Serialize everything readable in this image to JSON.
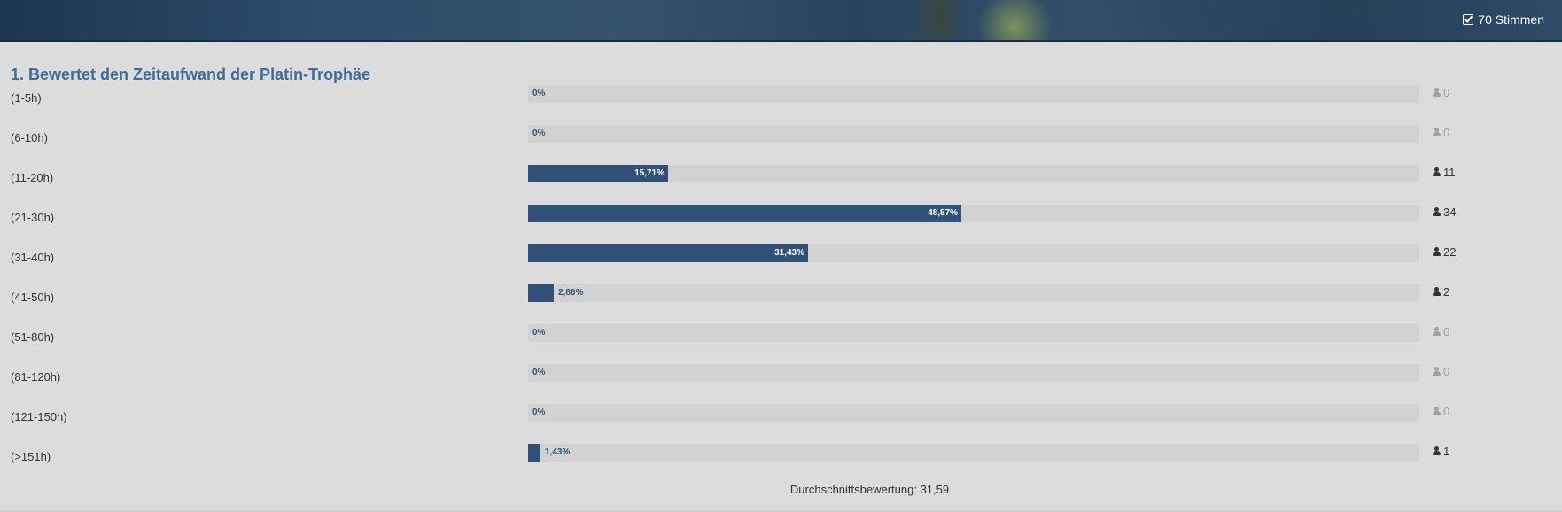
{
  "header": {
    "votes_label": "70 Stimmen"
  },
  "poll": {
    "question": "1. Bewertet den Zeitaufwand der Platin-Trophäe",
    "accent_color": "#31517a",
    "options": [
      {
        "label": "(1-5h)",
        "percent": 0,
        "percent_label": "0%",
        "votes": 0
      },
      {
        "label": "(6-10h)",
        "percent": 0,
        "percent_label": "0%",
        "votes": 0
      },
      {
        "label": "(11-20h)",
        "percent": 15.71,
        "percent_label": "15,71%",
        "votes": 11
      },
      {
        "label": "(21-30h)",
        "percent": 48.57,
        "percent_label": "48,57%",
        "votes": 34
      },
      {
        "label": "(31-40h)",
        "percent": 31.43,
        "percent_label": "31,43%",
        "votes": 22
      },
      {
        "label": "(41-50h)",
        "percent": 2.86,
        "percent_label": "2,86%",
        "votes": 2
      },
      {
        "label": "(51-80h)",
        "percent": 0,
        "percent_label": "0%",
        "votes": 0
      },
      {
        "label": "(81-120h)",
        "percent": 0,
        "percent_label": "0%",
        "votes": 0
      },
      {
        "label": "(121-150h)",
        "percent": 0,
        "percent_label": "0%",
        "votes": 0
      },
      {
        "label": "(>151h)",
        "percent": 1.43,
        "percent_label": "1,43%",
        "votes": 1
      }
    ],
    "average_label": "Durchschnittsbewertung: 31,59"
  }
}
